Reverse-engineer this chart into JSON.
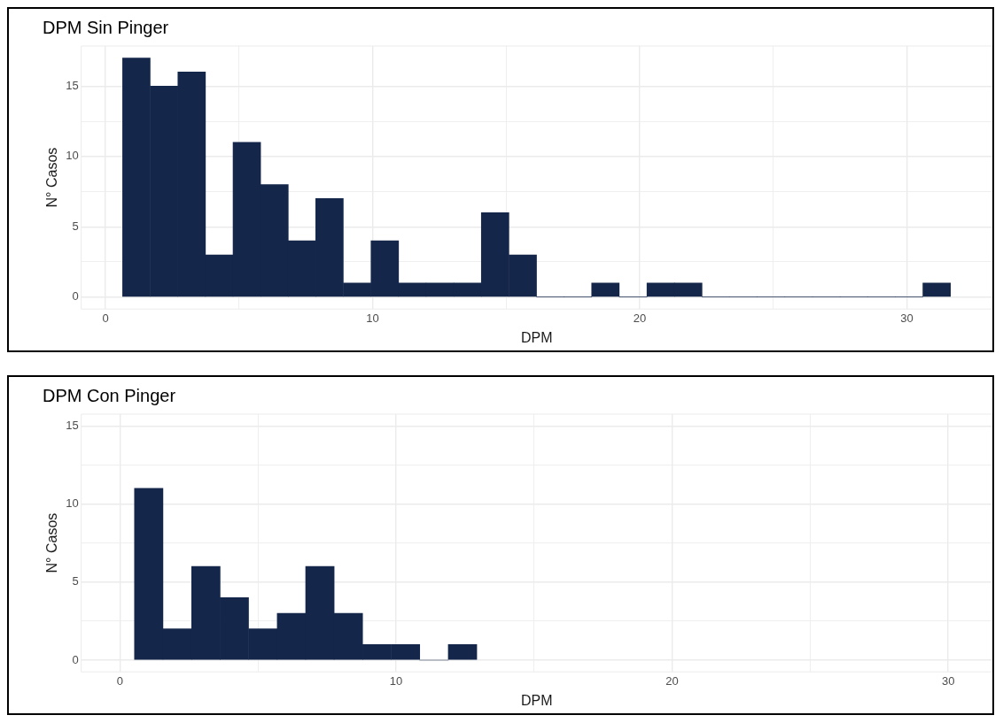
{
  "chart_data": [
    {
      "type": "histogram",
      "title": "DPM Sin Pinger",
      "xlabel": "DPM",
      "ylabel": "N° Casos",
      "color": "#14264a",
      "grid": true,
      "bins": [
        0.64,
        1.67,
        2.71,
        3.74,
        4.77,
        5.81,
        6.84,
        7.87,
        8.9,
        9.94,
        10.97,
        12.0,
        13.04,
        14.07,
        15.1,
        16.14,
        17.17,
        18.2,
        19.23,
        20.27,
        21.3,
        22.33,
        23.37,
        24.4,
        25.43,
        26.47,
        27.5,
        28.53,
        29.56,
        30.6,
        31.63
      ],
      "values": [
        17,
        15,
        16,
        3,
        11,
        8,
        4,
        7,
        1,
        4,
        1,
        1,
        1,
        6,
        3,
        0,
        0,
        1,
        0,
        1,
        1,
        0,
        0,
        0,
        0,
        0,
        0,
        0,
        0,
        1
      ],
      "xlim": [
        -0.91,
        33.2
      ],
      "ylim": [
        -0.85,
        17.85
      ],
      "xticks": [
        0,
        {
          "value": 5,
          "label": null
        },
        10,
        {
          "value": 15,
          "label": null
        },
        20,
        {
          "value": 25,
          "label": null
        },
        30
      ],
      "yticks": [
        0,
        {
          "value": 2.5,
          "label": null
        },
        5,
        {
          "value": 7.5,
          "label": null
        },
        10,
        {
          "value": 12.5,
          "label": null
        },
        15
      ]
    },
    {
      "type": "histogram",
      "title": "DPM Con Pinger",
      "xlabel": "DPM",
      "ylabel": "N° Casos",
      "color": "#14264a",
      "grid": true,
      "bins": [
        0.53,
        1.56,
        2.6,
        3.63,
        4.66,
        5.7,
        6.73,
        7.76,
        8.79,
        9.83,
        10.86,
        11.89,
        12.93
      ],
      "values": [
        11,
        2,
        6,
        4,
        2,
        3,
        6,
        3,
        1,
        1,
        0,
        1
      ],
      "xlim": [
        -1.4,
        31.6
      ],
      "ylim": [
        -0.75,
        15.75
      ],
      "xticks": [
        0,
        {
          "value": 5,
          "label": null
        },
        10,
        {
          "value": 15,
          "label": null
        },
        20,
        {
          "value": 25,
          "label": null
        },
        30
      ],
      "yticks": [
        0,
        {
          "value": 2.5,
          "label": null
        },
        5,
        {
          "value": 7.5,
          "label": null
        },
        10,
        {
          "value": 12.5,
          "label": null
        },
        15
      ]
    }
  ]
}
